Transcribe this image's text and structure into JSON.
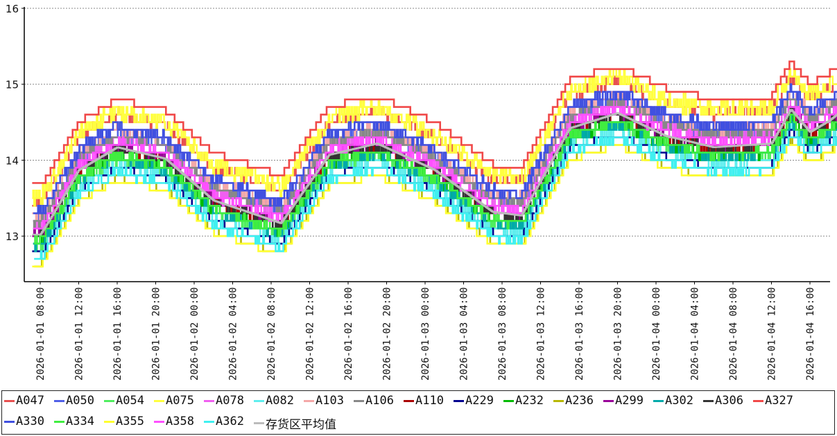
{
  "chart_data": {
    "type": "line",
    "ylim": [
      12.4,
      16.0
    ],
    "yticks": [
      13,
      14,
      15,
      16
    ],
    "ytick_labels": [
      "13",
      "14",
      "15",
      "16"
    ],
    "grid": true,
    "legend_position": "bottom",
    "x_start": "2026-01-01 06:40",
    "x_end": "2026-01-04 19:20",
    "xtick_labels": [
      "2026-01-01 08:00",
      "2026-01-01 12:00",
      "2026-01-01 16:00",
      "2026-01-01 20:00",
      "2026-01-02 00:00",
      "2026-01-02 04:00",
      "2026-01-02 08:00",
      "2026-01-02 12:00",
      "2026-01-02 16:00",
      "2026-01-02 20:00",
      "2026-01-03 00:00",
      "2026-01-03 04:00",
      "2026-01-03 08:00",
      "2026-01-03 12:00",
      "2026-01-03 16:00",
      "2026-01-03 20:00",
      "2026-01-04 00:00",
      "2026-01-04 04:00",
      "2026-01-04 08:00",
      "2026-01-04 12:00",
      "2026-01-04 16:00"
    ],
    "profile_hours": [
      0,
      1.0,
      4.0,
      8.0,
      13.0,
      18.0,
      25.0,
      30.0,
      35.0,
      41.0,
      47.0,
      50.0,
      55.0,
      60.0,
      65.0,
      70.0,
      76.0,
      78.0,
      80.0,
      82.0,
      84.0
    ],
    "profile_values": [
      12.9,
      13.1,
      13.75,
      14.05,
      13.9,
      13.35,
      13.05,
      13.95,
      14.1,
      13.75,
      13.2,
      13.15,
      14.3,
      14.5,
      14.2,
      14.05,
      14.1,
      14.55,
      14.25,
      14.4,
      14.6
    ],
    "series": [
      {
        "name": "A047",
        "color": "#e85050",
        "offset": 0.55,
        "amp": 0.06,
        "step": 0.1
      },
      {
        "name": "A050",
        "color": "#5060e8",
        "offset": 0.3,
        "amp": 0.07,
        "step": 0.1
      },
      {
        "name": "A054",
        "color": "#50ee60",
        "offset": -0.05,
        "amp": 0.05,
        "step": 0.1
      },
      {
        "name": "A075",
        "color": "#ffff40",
        "offset": 0.6,
        "amp": 0.12,
        "step": 0.1
      },
      {
        "name": "A078",
        "color": "#f060f0",
        "offset": 0.25,
        "amp": 0.05,
        "step": 0.1
      },
      {
        "name": "A082",
        "color": "#60eeee",
        "offset": -0.1,
        "amp": 0.05,
        "step": 0.1
      },
      {
        "name": "A103",
        "color": "#f4a8a8",
        "offset": 0.35,
        "amp": 0.06,
        "step": 0.1
      },
      {
        "name": "A106",
        "color": "#888888",
        "offset": 0.28,
        "amp": 0.05,
        "step": 0.1
      },
      {
        "name": "A110",
        "color": "#aa0000",
        "offset": 0.1,
        "amp": 0.05,
        "step": 0.1
      },
      {
        "name": "A229",
        "color": "#000090",
        "offset": -0.15,
        "amp": 0.0,
        "step": 0.1
      },
      {
        "name": "A232",
        "color": "#00bb00",
        "offset": 0.0,
        "amp": 0.05,
        "step": 0.1
      },
      {
        "name": "A236",
        "color": "#b8b800",
        "offset": -0.28,
        "amp": 0.0,
        "step": 0.1
      },
      {
        "name": "A299",
        "color": "#990099",
        "offset": 0.12,
        "amp": 0.05,
        "step": 0.1
      },
      {
        "name": "A302",
        "color": "#00aaaa",
        "offset": -0.02,
        "amp": 0.05,
        "step": 0.1
      },
      {
        "name": "A306",
        "color": "#333333",
        "offset": 0.1,
        "amp": 0.05,
        "step": 0.1
      },
      {
        "name": "A327",
        "color": "#f04848",
        "offset": 0.75,
        "amp": 0.0,
        "step": 0.1
      },
      {
        "name": "A330",
        "color": "#4050e0",
        "offset": 0.4,
        "amp": 0.06,
        "step": 0.1
      },
      {
        "name": "A334",
        "color": "#40ee40",
        "offset": 0.02,
        "amp": 0.05,
        "step": 0.1
      },
      {
        "name": "A355",
        "color": "#ffff30",
        "offset": -0.3,
        "amp": 0.0,
        "step": 0.1
      },
      {
        "name": "A358",
        "color": "#ff50ff",
        "offset": 0.18,
        "amp": 0.05,
        "step": 0.1
      },
      {
        "name": "A362",
        "color": "#40f0f0",
        "offset": -0.2,
        "amp": 0.05,
        "step": 0.1
      },
      {
        "name": "存货区平均值",
        "color": "#bbbbbb",
        "offset": 0.12,
        "amp": 0.0,
        "step": 0.0
      }
    ]
  }
}
